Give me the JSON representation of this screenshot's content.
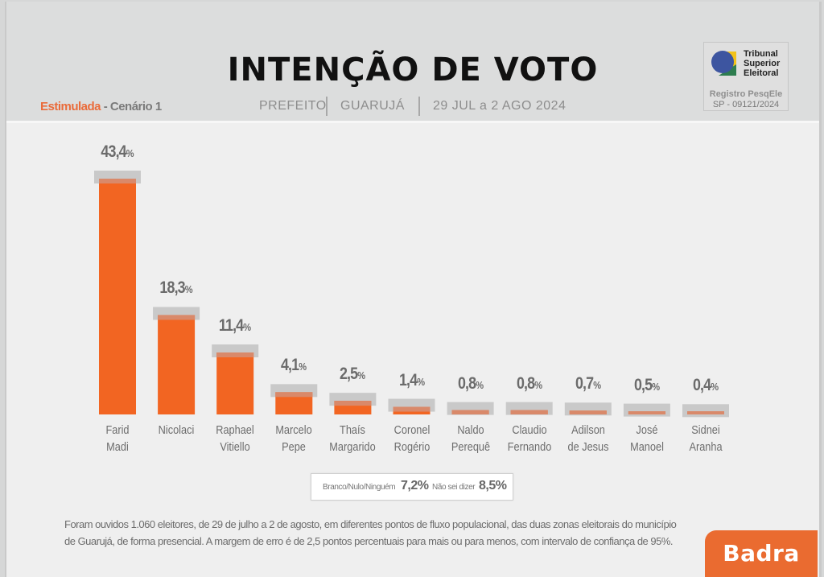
{
  "header": {
    "title": "INTENÇÃO DE VOTO",
    "scenario_highlight": "Estimulada",
    "scenario_rest": " - Cenário 1",
    "office": "PREFEITO",
    "city": "GUARUJÁ",
    "period": "29 JUL a 2 AGO 2024"
  },
  "registry_badge": {
    "org_line1": "Tribunal",
    "org_line2": "Superior",
    "org_line3": "Eleitoral",
    "reg_line1": "Registro PesqEle",
    "reg_line2": "SP - 09121/2024"
  },
  "chart_data": {
    "type": "bar",
    "title": "INTENÇÃO DE VOTO",
    "subtitle": "Estimulada - Cenário 1 | PREFEITO | GUARUJÁ | 29 JUL a 2 AGO 2024",
    "xlabel": "",
    "ylabel": "",
    "ylim": [
      0,
      43.4
    ],
    "grid": false,
    "legend": "none",
    "value_suffix": "%",
    "categories": [
      [
        "Farid",
        "Madi"
      ],
      [
        "Nicolaci",
        ""
      ],
      [
        "Raphael",
        "Vitiello"
      ],
      [
        "Marcelo",
        "Pepe"
      ],
      [
        "Thaís",
        "Margarido"
      ],
      [
        "Coronel",
        "Rogério"
      ],
      [
        "Naldo",
        "Perequê"
      ],
      [
        "Claudio",
        "Fernando"
      ],
      [
        "Adilson",
        "de Jesus"
      ],
      [
        "José",
        "Manoel"
      ],
      [
        "Sidnei",
        "Aranha"
      ]
    ],
    "values": [
      43.4,
      18.3,
      11.4,
      4.1,
      2.5,
      1.4,
      0.8,
      0.8,
      0.7,
      0.5,
      0.4
    ],
    "value_labels": [
      "43,4",
      "18,3",
      "11,4",
      "4,1",
      "2,5",
      "1,4",
      "0,8",
      "0,8",
      "0,7",
      "0,5",
      "0,4"
    ],
    "bar_color": "#f26522",
    "error_band_color": "#c9c9c9",
    "margin_of_error": 2.5
  },
  "others_box": {
    "blank_label": "Branco/Nulo/Ninguém",
    "blank_value": "7,2%",
    "dontknow_label": "Não sei dizer",
    "dontknow_value": "8,5%"
  },
  "footnote": {
    "line1": "Foram ouvidos 1.060 eleitores, de 29 de julho a 2 de agosto, em diferentes pontos de fluxo populacional, das duas zonas eleitorais do município",
    "line2": "de Guarujá, de forma presencial. A margem de erro é de 2,5 pontos percentuais para mais ou para menos, com intervalo de confiança de 95%."
  },
  "brand": {
    "name": "Badra",
    "color": "#ea6b30"
  }
}
